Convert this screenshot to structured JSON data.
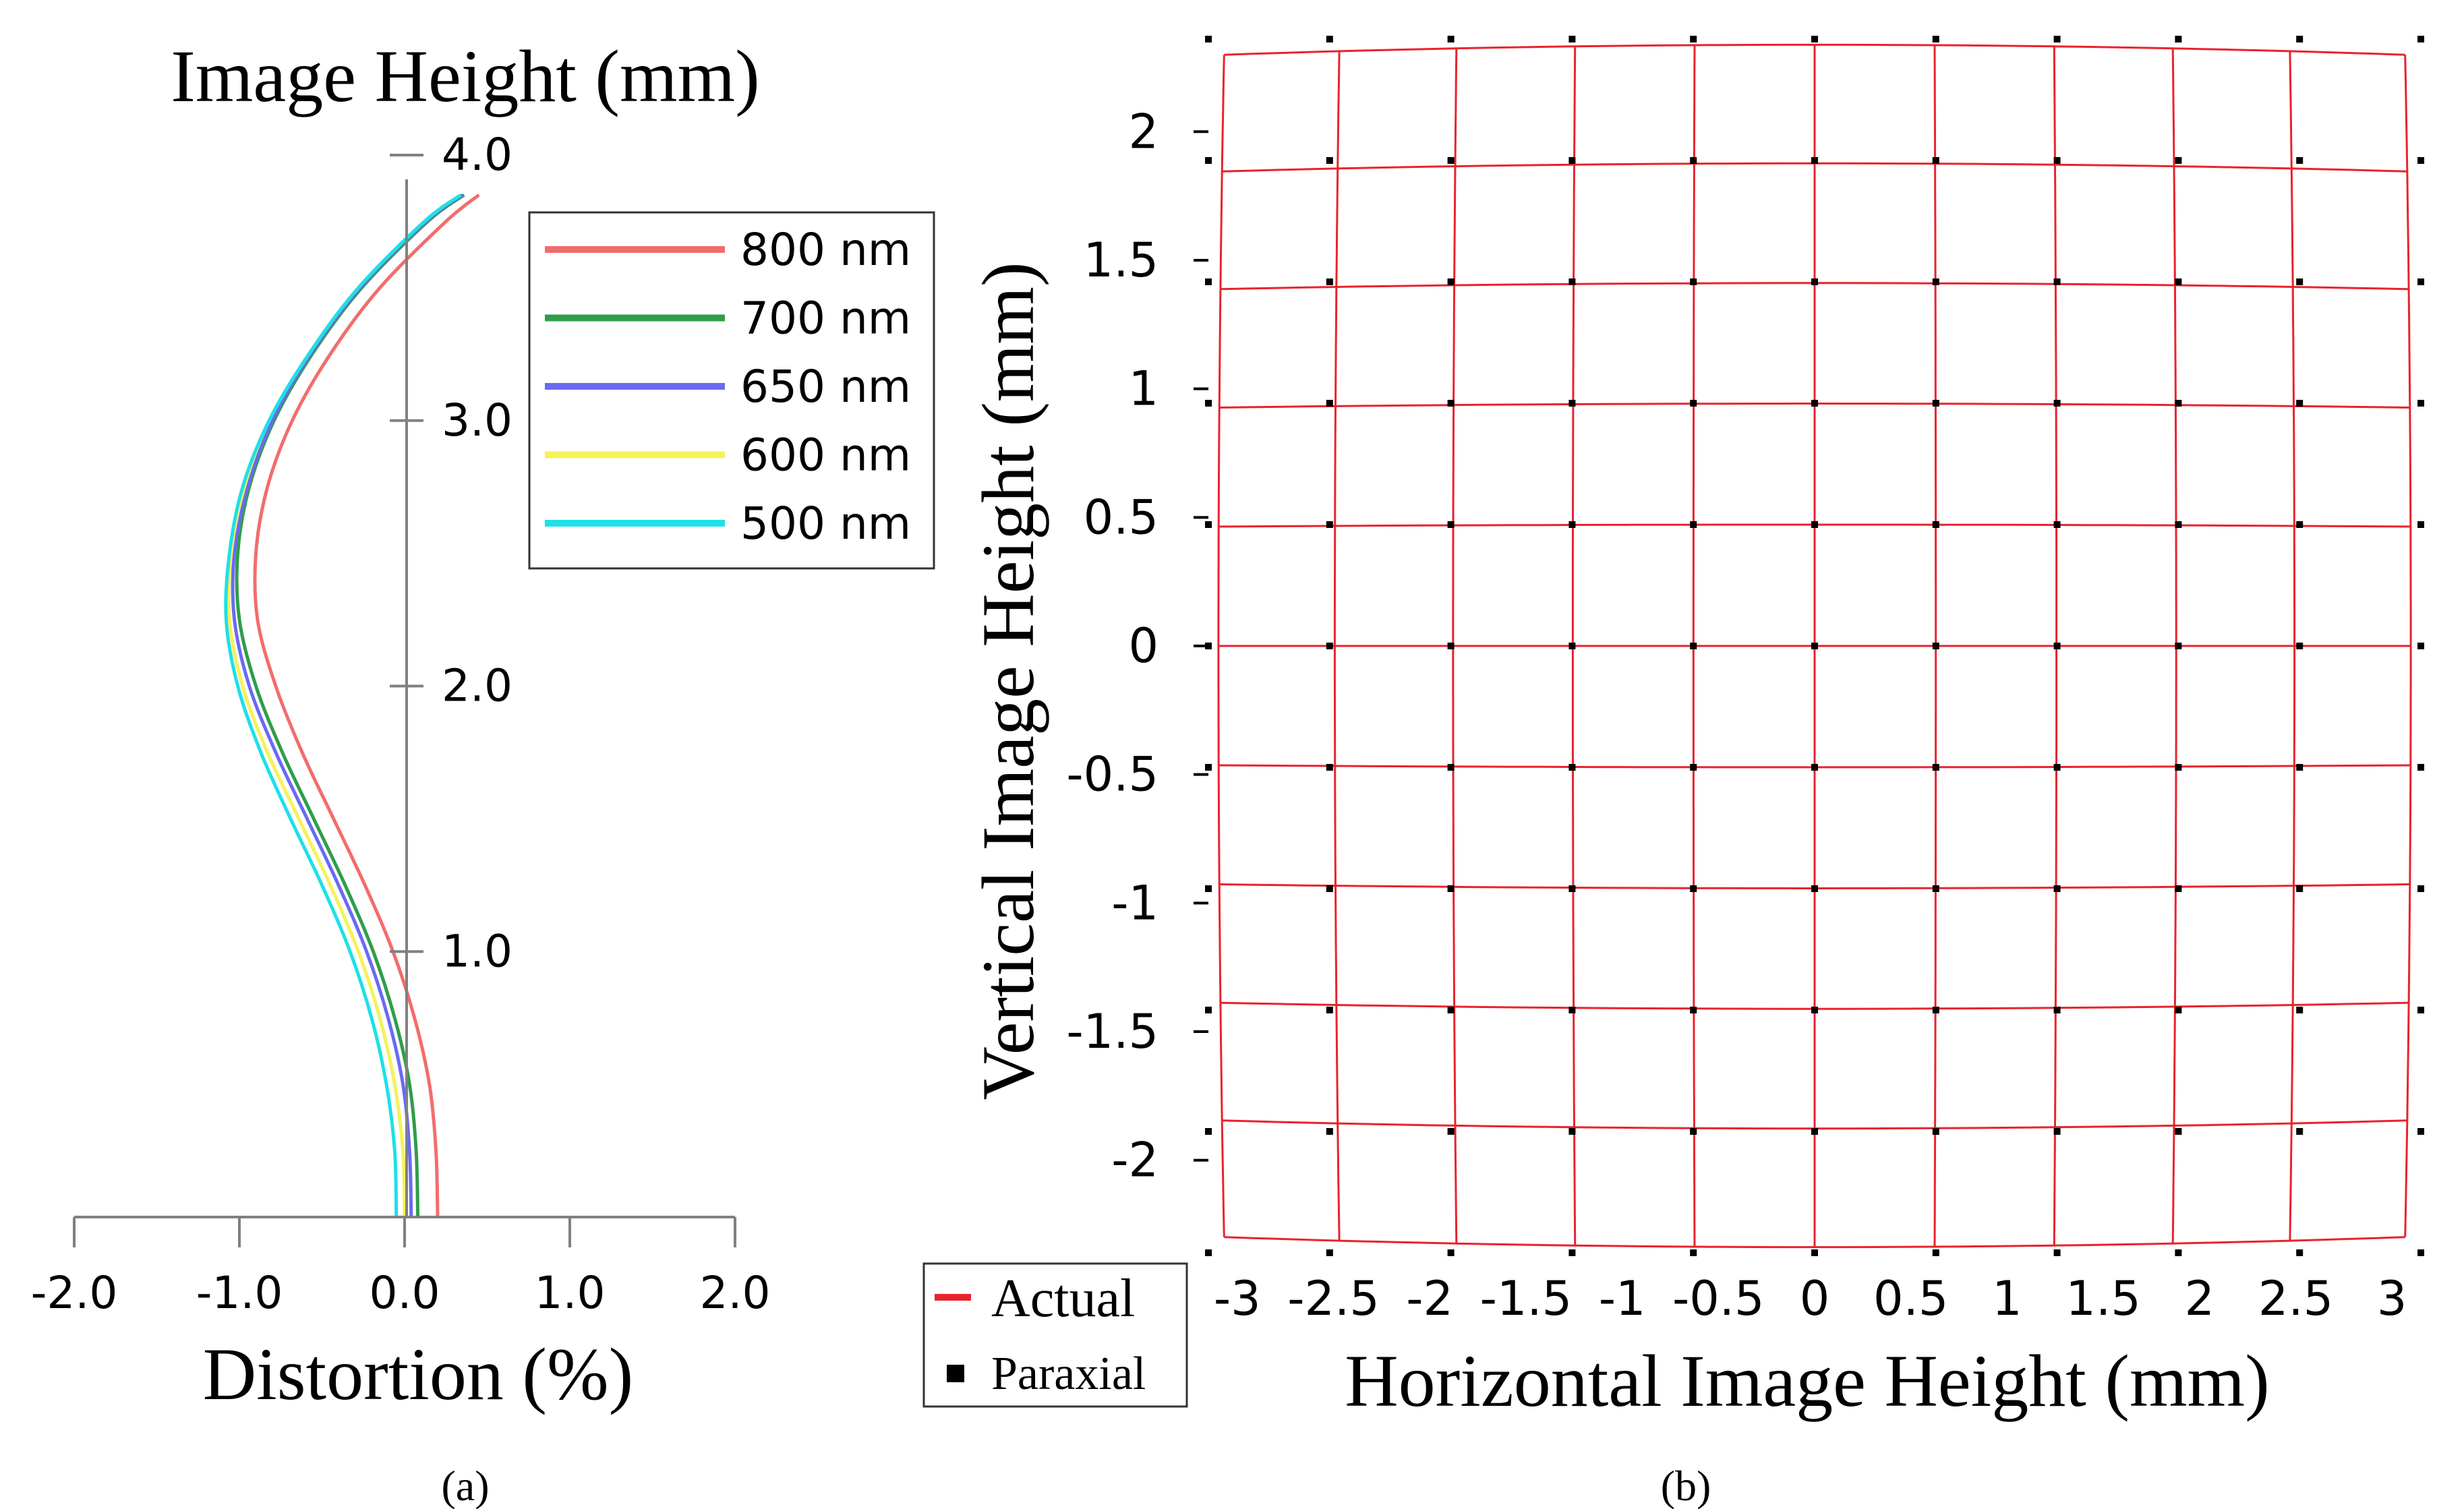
{
  "chart_data": [
    {
      "type": "line",
      "panel_label": "(a)",
      "title": "Image Height (mm)",
      "xlabel": "Distortion (%)",
      "ylabel": "Image Height (mm)",
      "xlim": [
        -2.0,
        2.0
      ],
      "ylim": [
        0.0,
        4.0
      ],
      "x_ticks": [
        "-2.0",
        "-1.0",
        "0.0",
        "1.0",
        "2.0"
      ],
      "y_ticks": [
        "1.0",
        "2.0",
        "3.0",
        "4.0"
      ],
      "x_tick_values": [
        -2.0,
        -1.0,
        0.0,
        1.0,
        2.0
      ],
      "y_tick_values": [
        1.0,
        2.0,
        3.0,
        4.0
      ],
      "grid": false,
      "legend_position": "top-right",
      "y_samples": [
        0.0,
        0.25,
        0.5,
        0.75,
        1.0,
        1.25,
        1.5,
        1.75,
        2.0,
        2.25,
        2.5,
        2.75,
        3.0,
        3.25,
        3.5,
        3.75,
        3.85
      ],
      "series": [
        {
          "name": "800 nm",
          "color": "#f26d6d",
          "x": [
            0.2,
            0.19,
            0.15,
            0.06,
            -0.07,
            -0.24,
            -0.43,
            -0.62,
            -0.78,
            -0.89,
            -0.9,
            -0.83,
            -0.68,
            -0.45,
            -0.15,
            0.25,
            0.45
          ]
        },
        {
          "name": "700 nm",
          "color": "#2e9e4a",
          "x": [
            0.08,
            0.07,
            0.03,
            -0.06,
            -0.19,
            -0.36,
            -0.55,
            -0.74,
            -0.9,
            -1.0,
            -1.01,
            -0.94,
            -0.79,
            -0.56,
            -0.26,
            0.14,
            0.36
          ]
        },
        {
          "name": "650 nm",
          "color": "#6a6af2",
          "x": [
            0.04,
            0.03,
            -0.01,
            -0.1,
            -0.23,
            -0.4,
            -0.59,
            -0.78,
            -0.94,
            -1.03,
            -1.03,
            -0.95,
            -0.8,
            -0.57,
            -0.27,
            0.13,
            0.35
          ]
        },
        {
          "name": "600 nm",
          "color": "#f5f25a",
          "x": [
            0.0,
            -0.01,
            -0.06,
            -0.15,
            -0.28,
            -0.45,
            -0.64,
            -0.83,
            -0.98,
            -1.06,
            -1.05,
            -0.97,
            -0.82,
            -0.58,
            -0.28,
            0.12,
            0.34
          ]
        },
        {
          "name": "500 nm",
          "color": "#1ee0e8",
          "x": [
            -0.05,
            -0.06,
            -0.11,
            -0.2,
            -0.33,
            -0.5,
            -0.69,
            -0.87,
            -1.01,
            -1.08,
            -1.06,
            -0.98,
            -0.82,
            -0.58,
            -0.28,
            0.12,
            0.34
          ]
        }
      ]
    },
    {
      "type": "scatter",
      "panel_label": "(b)",
      "title": "",
      "xlabel": "Horizontal Image Height (mm)",
      "ylabel": "Vertical Image Height (mm)",
      "xlim": [
        -3.15,
        3.15
      ],
      "ylim": [
        -2.36,
        2.36
      ],
      "x_ticks": [
        "-3",
        "-2.5",
        "-2",
        "-1.5",
        "-1",
        "-0.5",
        "0",
        "0.5",
        "1",
        "1.5",
        "2",
        "2.5",
        "3"
      ],
      "y_ticks": [
        "2",
        "1.5",
        "1",
        "0.5",
        "0",
        "-0.5",
        "-1",
        "-1.5",
        "-2"
      ],
      "x_tick_values": [
        -3,
        -2.5,
        -2,
        -1.5,
        -1,
        -0.5,
        0,
        0.5,
        1,
        1.5,
        2,
        2.5,
        3
      ],
      "y_tick_values": [
        2,
        1.5,
        1,
        0.5,
        0,
        -0.5,
        -1,
        -1.5,
        -2
      ],
      "grid_x": [
        -3.15,
        -2.52,
        -1.89,
        -1.26,
        -0.63,
        0.0,
        0.63,
        1.26,
        1.89,
        2.52,
        3.15
      ],
      "grid_y": [
        -2.36,
        -1.888,
        -1.416,
        -0.944,
        -0.472,
        0.0,
        0.472,
        0.944,
        1.416,
        1.888,
        2.36
      ],
      "distortion_k": -0.00167,
      "series": [
        {
          "name": "Actual",
          "color": "#e8232e",
          "marker": "line"
        },
        {
          "name": "Paraxial",
          "color": "#000000",
          "marker": "square"
        }
      ],
      "legend_position": "bottom-left"
    }
  ]
}
